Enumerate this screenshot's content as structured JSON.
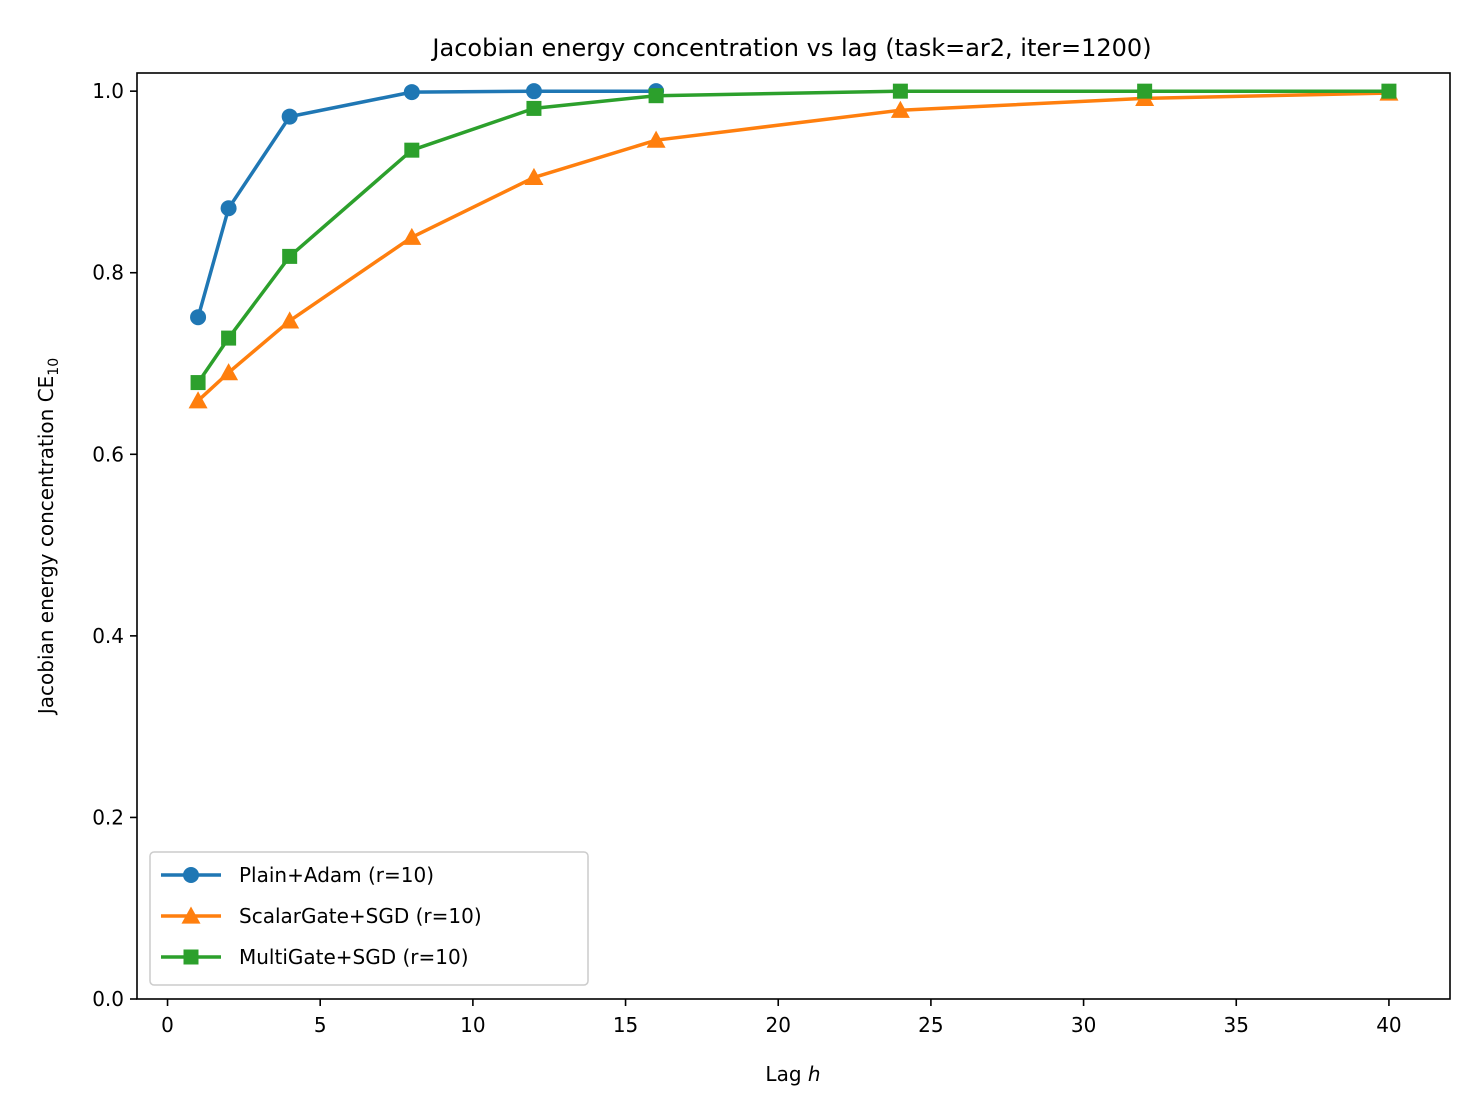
{
  "chart_data": {
    "type": "line",
    "title": "Jacobian energy concentration vs lag (task=ar2, iter=1200)",
    "xlabel": "Lag",
    "xlabel_var": "h",
    "ylabel": "Jacobian energy concentration CE",
    "ylabel_sub": "10",
    "xlim": [
      -1,
      42
    ],
    "ylim": [
      0.0,
      1.02
    ],
    "xticks": [
      0,
      5,
      10,
      15,
      20,
      25,
      30,
      35,
      40
    ],
    "xtick_labels": [
      "0",
      "5",
      "10",
      "15",
      "20",
      "25",
      "30",
      "35",
      "40"
    ],
    "yticks": [
      0.0,
      0.2,
      0.4,
      0.6,
      0.8,
      1.0
    ],
    "ytick_labels": [
      "0.0",
      "0.2",
      "0.4",
      "0.6",
      "0.8",
      "1.0"
    ],
    "grid": false,
    "legend_position": "lower-left",
    "x": [
      1,
      2,
      4,
      8,
      12,
      16,
      24,
      32,
      40
    ],
    "series": [
      {
        "name": "Plain+Adam (r=10)",
        "color": "#1f77b4",
        "marker": "circle",
        "x": [
          1,
          2,
          4,
          8,
          12,
          16
        ],
        "values": [
          0.751,
          0.871,
          0.972,
          0.999,
          1.0,
          1.0
        ]
      },
      {
        "name": "ScalarGate+SGD (r=10)",
        "color": "#ff7f0e",
        "marker": "triangle",
        "x": [
          1,
          2,
          4,
          8,
          12,
          16,
          24,
          32,
          40
        ],
        "values": [
          0.659,
          0.69,
          0.747,
          0.839,
          0.905,
          0.946,
          0.979,
          0.992,
          0.998
        ]
      },
      {
        "name": "MultiGate+SGD (r=10)",
        "color": "#2ca02c",
        "marker": "square",
        "x": [
          1,
          2,
          4,
          8,
          12,
          16,
          24,
          32,
          40
        ],
        "values": [
          0.679,
          0.728,
          0.818,
          0.935,
          0.981,
          0.995,
          1.0,
          1.0,
          1.0
        ]
      }
    ]
  }
}
